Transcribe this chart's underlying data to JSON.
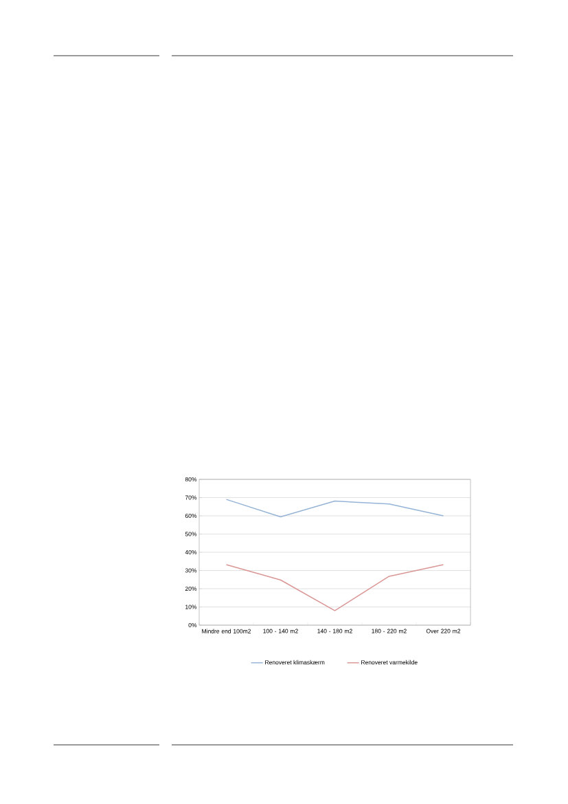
{
  "chart_data": {
    "type": "line",
    "categories": [
      "Mindre end 100m2",
      "100 - 140 m2",
      "140 - 180 m2",
      "180 - 220 m2",
      "Over 220 m2"
    ],
    "series": [
      {
        "name": "Renoveret klimaskærm",
        "color": "#95b3d7",
        "values": [
          69,
          59.4,
          68.1,
          66.5,
          60
        ]
      },
      {
        "name": "Renoveret varmekilde",
        "color": "#d99694",
        "values": [
          33.2,
          24.8,
          8,
          26.8,
          33.2
        ]
      }
    ],
    "ylim": [
      0,
      80
    ],
    "yticks": [
      {
        "value": 0,
        "label": "0%"
      },
      {
        "value": 10,
        "label": "10%"
      },
      {
        "value": 20,
        "label": "20%"
      },
      {
        "value": 30,
        "label": "30%"
      },
      {
        "value": 40,
        "label": "40%"
      },
      {
        "value": 50,
        "label": "50%"
      },
      {
        "value": 60,
        "label": "60%"
      },
      {
        "value": 70,
        "label": "70%"
      },
      {
        "value": 80,
        "label": "80%"
      }
    ],
    "grid": "y",
    "legend": "bottom",
    "marker": "none",
    "line_style": "solid"
  }
}
